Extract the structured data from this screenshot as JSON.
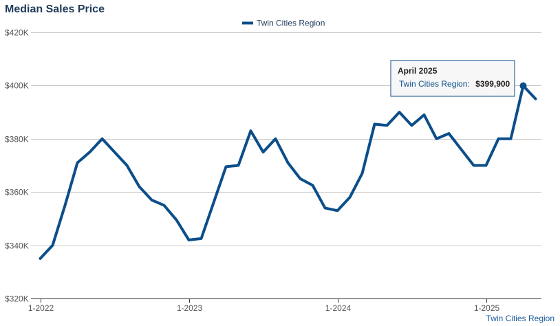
{
  "chart_data": {
    "type": "line",
    "title": "Median Sales Price",
    "ylabel": "",
    "xlabel": "",
    "ylim": [
      320000,
      420000
    ],
    "y_ticks": [
      320000,
      340000,
      360000,
      380000,
      400000,
      420000
    ],
    "y_tick_labels": [
      "$320K",
      "$340K",
      "$360K",
      "$380K",
      "$400K",
      "$420K"
    ],
    "x_ticks": [
      {
        "label": "1-2022",
        "month": "2022-01"
      },
      {
        "label": "1-2023",
        "month": "2023-01"
      },
      {
        "label": "1-2024",
        "month": "2024-01"
      },
      {
        "label": "1-2025",
        "month": "2025-01"
      }
    ],
    "grid": true,
    "legend_position": "top-center",
    "series": [
      {
        "name": "Twin Cities Region",
        "color": "#0b4e8a",
        "x": [
          "2022-01",
          "2022-02",
          "2022-03",
          "2022-04",
          "2022-05",
          "2022-06",
          "2022-07",
          "2022-08",
          "2022-09",
          "2022-10",
          "2022-11",
          "2022-12",
          "2023-01",
          "2023-02",
          "2023-03",
          "2023-04",
          "2023-05",
          "2023-06",
          "2023-07",
          "2023-08",
          "2023-09",
          "2023-10",
          "2023-11",
          "2023-12",
          "2024-01",
          "2024-02",
          "2024-03",
          "2024-04",
          "2024-05",
          "2024-06",
          "2024-07",
          "2024-08",
          "2024-09",
          "2024-10",
          "2024-11",
          "2024-12",
          "2025-01",
          "2025-02",
          "2025-03",
          "2025-04",
          "2025-05"
        ],
        "values": [
          335000,
          340000,
          355000,
          371000,
          375000,
          380000,
          375000,
          370000,
          362000,
          357000,
          355000,
          349500,
          342000,
          342500,
          356000,
          369500,
          370000,
          383000,
          375000,
          380000,
          371000,
          365000,
          362500,
          354000,
          353000,
          358000,
          367000,
          385500,
          385000,
          390000,
          385000,
          389000,
          380000,
          382000,
          376000,
          370000,
          370000,
          380000,
          380000,
          399900,
          395000
        ]
      }
    ],
    "highlight": {
      "x": "2025-04",
      "title": "April 2025",
      "series": "Twin Cities Region:",
      "value": "$399,900"
    },
    "credit": "Twin Cities Region"
  }
}
